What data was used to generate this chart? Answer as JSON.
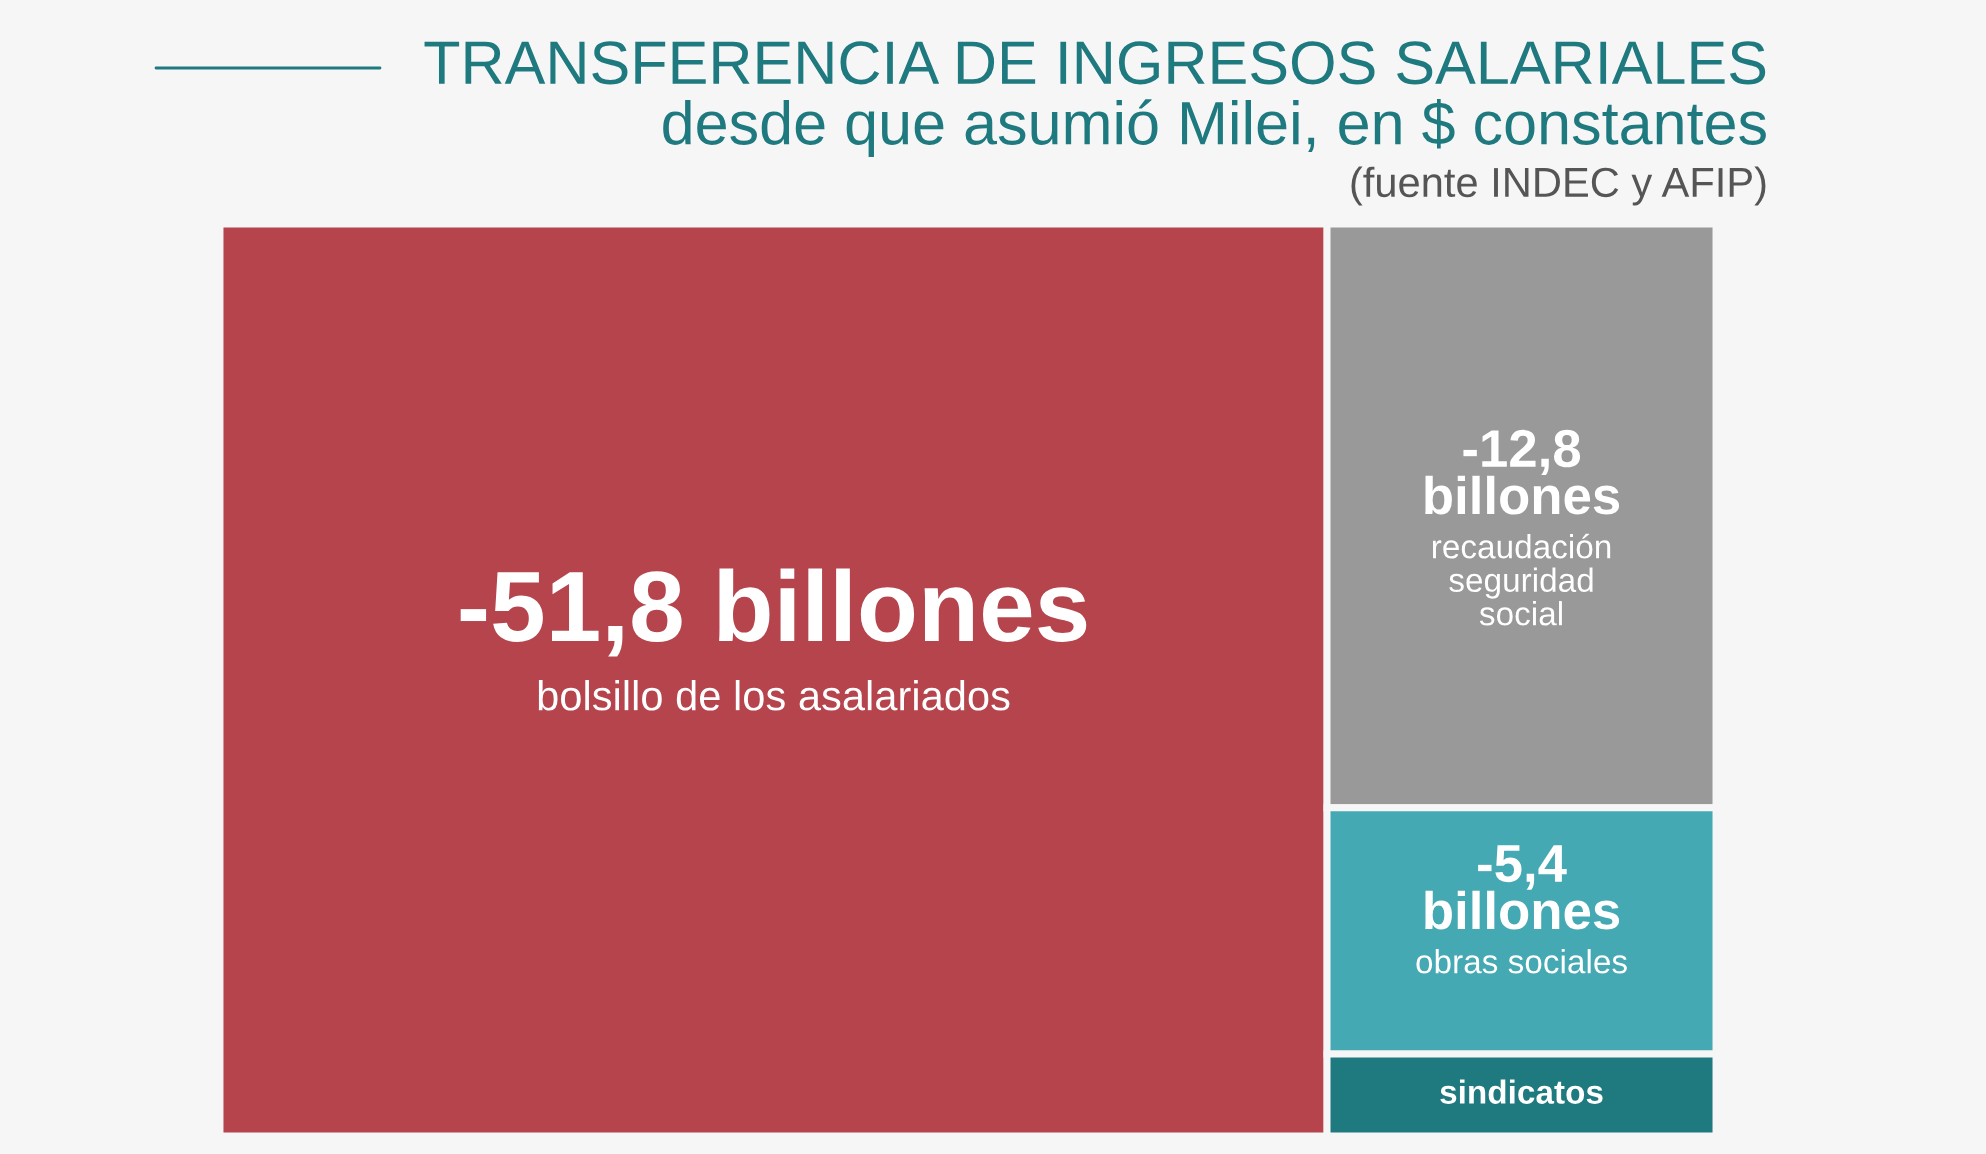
{
  "chart_data": {
    "type": "other",
    "title": "TRANSFERENCIA DE INGRESOS SALARIALES",
    "subtitle": "desde que asumió Milei, en $ constantes",
    "annotations": [
      "(fuente INDEC y AFIP)"
    ],
    "categories": [
      "bolsillo de los asalariados",
      "recaudación\nseguridad\nsocial",
      "obras sociales",
      "sindicatos"
    ],
    "values": [
      -51.8,
      -12.8,
      -5.4,
      null
    ],
    "value_labels": [
      "-51,8 billones",
      "-12,8\nbillones",
      "-5,4\nbillones",
      null
    ],
    "colors": [
      "#b5444c",
      "#999999",
      "#45a9b4",
      "#1f7a80"
    ]
  }
}
